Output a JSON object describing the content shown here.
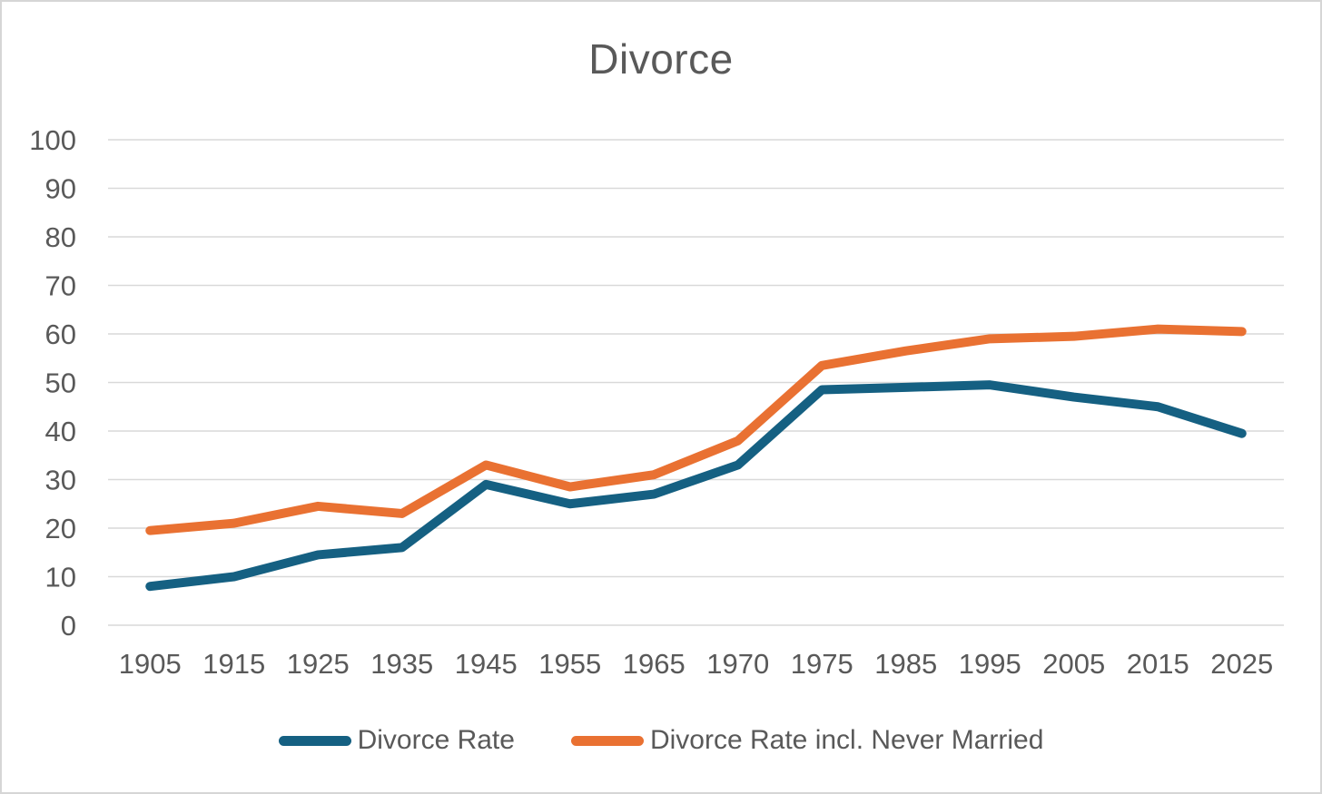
{
  "window": {
    "background": "#ffffff",
    "border_color": "#d6d6d6"
  },
  "chart_data": {
    "type": "line",
    "title": "Divorce",
    "categories": [
      "1905",
      "1915",
      "1925",
      "1935",
      "1945",
      "1955",
      "1965",
      "1970",
      "1975",
      "1985",
      "1995",
      "2005",
      "2015",
      "2025"
    ],
    "series": [
      {
        "name": "Divorce Rate",
        "color": "#156082",
        "values": [
          8,
          10,
          14.5,
          16,
          29,
          25,
          27,
          33,
          48.5,
          49,
          49.5,
          47,
          45,
          39.5
        ]
      },
      {
        "name": "Divorce Rate incl. Never Married",
        "color": "#E97132",
        "values": [
          19.5,
          21,
          24.5,
          23,
          33,
          28.5,
          31,
          38,
          53.5,
          56.5,
          59,
          59.5,
          61,
          60.5
        ]
      }
    ],
    "xlabel": "",
    "ylabel": "",
    "ylim": [
      0,
      100
    ],
    "ytick_step": 10,
    "grid": "horizontal",
    "grid_color": "#d9d9d9",
    "text_color": "#595959",
    "legend_position": "bottom",
    "line_width": 10
  }
}
